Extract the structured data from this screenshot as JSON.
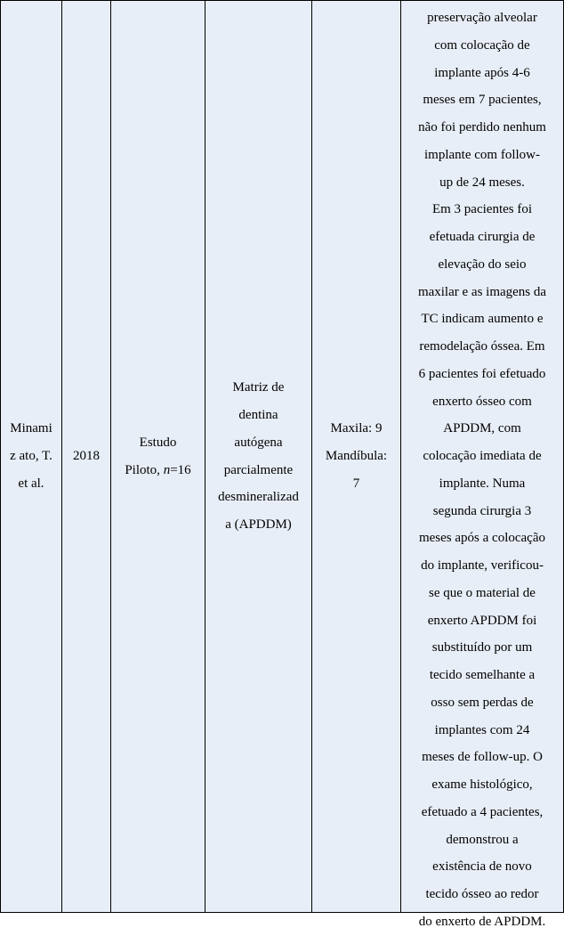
{
  "row": {
    "author": "Minami\nz ato, T.\net al.",
    "year": "2018",
    "study_pre": "Estudo\nPiloto, ",
    "study_n": "n",
    "study_post": "=16",
    "material": "Matriz de\ndentina\nautógena\nparcialmente\ndesmineralizad\na (APDDM)",
    "site": "Maxila: 9\nMandíbula:\n7",
    "result": "Foi efetuada\npreservação alveolar\ncom colocação de\nimplante após 4-6\nmeses em 7 pacientes,\nnão foi perdido nenhum\nimplante com follow-\nup de 24 meses.\nEm 3 pacientes foi\nefetuada cirurgia de\nelevação do seio\nmaxilar e as imagens da\nTC indicam aumento e\nremodelação óssea. Em\n6 pacientes foi efetuado\nenxerto ósseo com\nAPDDM, com\ncolocação imediata de\nimplante. Numa\nsegunda cirurgia 3\nmeses após a colocação\ndo implante, verificou-\nse que o material de\nenxerto APDDM foi\nsubstituído por um\ntecido semelhante a\nosso sem perdas de\nimplantes com 24\nmeses de follow-up. O\nexame histológico,\nefetuado a 4 pacientes,\ndemonstrou a\nexistência de novo\ntecido ósseo ao redor\ndo enxerto de APDDM."
  }
}
